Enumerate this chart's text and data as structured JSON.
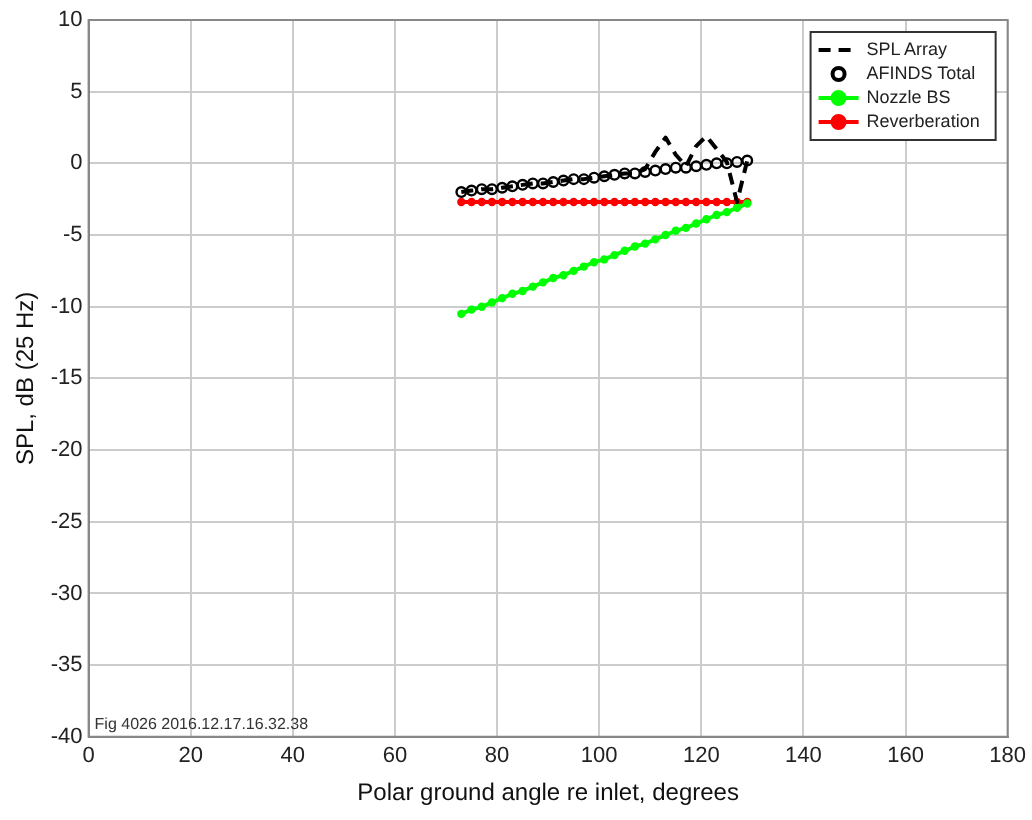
{
  "chart_data": {
    "type": "line",
    "xlabel": "Polar ground angle re inlet, degrees",
    "ylabel": "SPL, dB (25 Hz)",
    "x": [
      73,
      75,
      77,
      79,
      81,
      83,
      85,
      87,
      89,
      91,
      93,
      95,
      97,
      99,
      101,
      103,
      105,
      107,
      109,
      111,
      113,
      115,
      117,
      119,
      121,
      123,
      125,
      127,
      129
    ],
    "xlim": [
      0,
      180
    ],
    "xticks": [
      0,
      20,
      40,
      60,
      80,
      100,
      120,
      140,
      160,
      180
    ],
    "ylim": [
      -40,
      10
    ],
    "yticks": [
      -40,
      -35,
      -30,
      -25,
      -20,
      -15,
      -10,
      -5,
      0,
      5,
      10
    ],
    "grid": true,
    "legend": "top right",
    "annotations": [
      "Fig 4026 2016.12.17.16.32.38"
    ],
    "series": [
      {
        "name": "SPL Array",
        "type": "line",
        "color": "#000000",
        "marker": "none",
        "line_style": "dashed",
        "values": [
          -2.0,
          -1.9,
          -1.8,
          -1.8,
          -1.7,
          -1.6,
          -1.5,
          -1.4,
          -1.4,
          -1.3,
          -1.2,
          -1.1,
          -1.1,
          -1.0,
          -0.9,
          -0.8,
          -0.7,
          -0.7,
          -0.4,
          0.8,
          1.8,
          0.6,
          -0.2,
          1.2,
          1.9,
          1.0,
          0.1,
          -2.7,
          0.2
        ]
      },
      {
        "name": "AFINDS Total",
        "type": "scatter",
        "color": "#000000",
        "marker": "circle",
        "values": [
          -2.0,
          -1.9,
          -1.8,
          -1.8,
          -1.7,
          -1.6,
          -1.5,
          -1.4,
          -1.4,
          -1.3,
          -1.2,
          -1.1,
          -1.1,
          -1.0,
          -0.9,
          -0.8,
          -0.7,
          -0.7,
          -0.6,
          -0.5,
          -0.4,
          -0.3,
          -0.3,
          -0.2,
          -0.1,
          0.0,
          0.0,
          0.1,
          0.2
        ]
      },
      {
        "name": "Nozzle BS",
        "type": "line",
        "color": "#00ff00",
        "marker": "circle",
        "line_style": "solid",
        "values": [
          -10.5,
          -10.2,
          -10.0,
          -9.7,
          -9.4,
          -9.1,
          -8.9,
          -8.6,
          -8.3,
          -8.0,
          -7.8,
          -7.5,
          -7.2,
          -6.9,
          -6.7,
          -6.4,
          -6.1,
          -5.8,
          -5.6,
          -5.3,
          -5.0,
          -4.7,
          -4.5,
          -4.2,
          -3.9,
          -3.6,
          -3.4,
          -3.1,
          -2.8
        ]
      },
      {
        "name": "Reverberation",
        "type": "line",
        "color": "#ff0000",
        "marker": "circle",
        "line_style": "solid",
        "values": [
          -2.7,
          -2.7,
          -2.7,
          -2.7,
          -2.7,
          -2.7,
          -2.7,
          -2.7,
          -2.7,
          -2.7,
          -2.7,
          -2.7,
          -2.7,
          -2.7,
          -2.7,
          -2.7,
          -2.7,
          -2.7,
          -2.7,
          -2.7,
          -2.7,
          -2.7,
          -2.7,
          -2.7,
          -2.7,
          -2.7,
          -2.7,
          -2.7,
          -2.7
        ]
      }
    ]
  }
}
